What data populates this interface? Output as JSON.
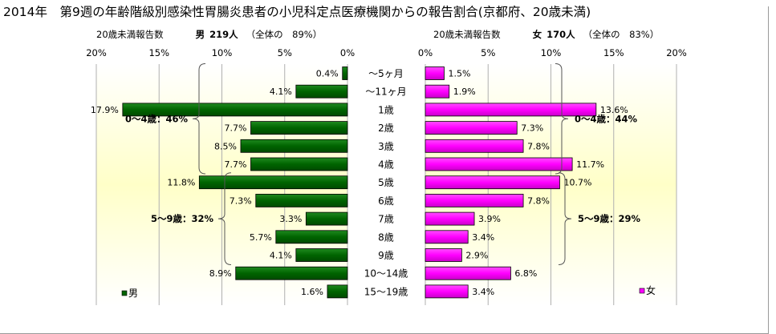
{
  "title": "2014年　第9週の年齢階級別感染性胃腸炎患者の小児科定点医療機関からの報告割合(京都府、20歳未満)",
  "chart_data": {
    "type": "bar",
    "orientation": "horizontal-butterfly",
    "categories": [
      "～5ヶ月",
      "～11ヶ月",
      "1歳",
      "2歳",
      "3歳",
      "4歳",
      "5歳",
      "6歳",
      "7歳",
      "8歳",
      "9歳",
      "10～14歳",
      "15～19歳"
    ],
    "series": [
      {
        "name": "男",
        "side": "left",
        "color": "#006400",
        "values": [
          0.4,
          4.1,
          17.9,
          7.7,
          8.5,
          7.7,
          11.8,
          7.3,
          3.3,
          5.7,
          4.1,
          8.9,
          1.6
        ],
        "value_labels": [
          "0.4%",
          "4.1%",
          "17.9%",
          "7.7%",
          "8.5%",
          "7.7%",
          "11.8%",
          "7.3%",
          "3.3%",
          "5.7%",
          "4.1%",
          "8.9%",
          "1.6%"
        ],
        "header": {
          "caption": "20歳未満報告数",
          "gender": "男",
          "count": "219人",
          "share": "（全体の　89%）"
        },
        "axis_ticks": [
          "20%",
          "15%",
          "10%",
          "5%",
          "0%"
        ],
        "axis_values": [
          20,
          15,
          10,
          5,
          0
        ],
        "legend_label": "男",
        "group_annotations": [
          {
            "text": "0～4歳：46%",
            "from": 0,
            "to": 5
          },
          {
            "text": "5～9歳：32%",
            "from": 6,
            "to": 10
          }
        ]
      },
      {
        "name": "女",
        "side": "right",
        "color": "#ff00ff",
        "values": [
          1.5,
          1.9,
          13.6,
          7.3,
          7.8,
          11.7,
          10.7,
          7.8,
          3.9,
          3.4,
          2.9,
          6.8,
          3.4
        ],
        "value_labels": [
          "1.5%",
          "1.9%",
          "13.6%",
          "7.3%",
          "7.8%",
          "11.7%",
          "10.7%",
          "7.8%",
          "3.9%",
          "3.4%",
          "2.9%",
          "6.8%",
          "3.4%"
        ],
        "header": {
          "caption": "20歳未満報告数",
          "gender": "女",
          "count": "170人",
          "share": "（全体の　83%）"
        },
        "axis_ticks": [
          "0%",
          "5%",
          "10%",
          "15%",
          "20%"
        ],
        "axis_values": [
          0,
          5,
          10,
          15,
          20
        ],
        "legend_label": "女",
        "group_annotations": [
          {
            "text": "0～4歳：44%",
            "from": 0,
            "to": 5
          },
          {
            "text": "5～9歳：29%",
            "from": 6,
            "to": 10
          }
        ]
      }
    ],
    "xlim": [
      0,
      20
    ],
    "unit": "%",
    "grid": true,
    "legend": "bottom-left (男), bottom-right (女)"
  },
  "colors": {
    "male": "#006400",
    "female": "#ff00ff",
    "plot_background_top": "#ffffff",
    "plot_background_mid": "#ffffc8",
    "gridline": "#b0b0b0"
  }
}
